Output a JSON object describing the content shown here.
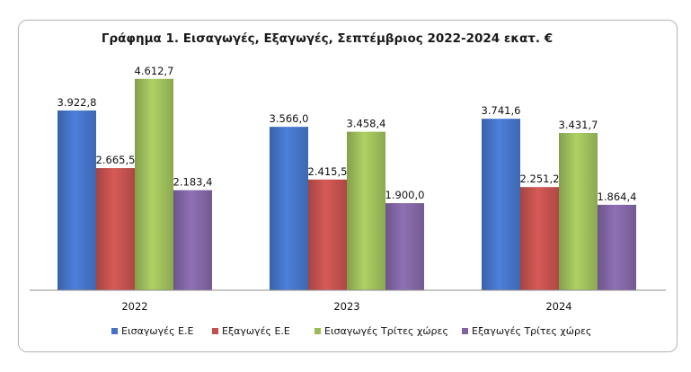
{
  "chart_data": {
    "type": "bar",
    "title": "Γράφημα 1. Εισαγωγές, Εξαγωγές, Σεπτέμβριος 2022-2024 εκατ. €",
    "categories": [
      "2022",
      "2023",
      "2024"
    ],
    "series": [
      {
        "name": "Εισαγωγές Ε.Ε",
        "values": [
          3922.8,
          3566.0,
          3741.6
        ],
        "labels": [
          "3.922,8",
          "3.566,0",
          "3.741,6"
        ],
        "color": "#4472C4"
      },
      {
        "name": "Εξαγωγές  Ε.Ε",
        "values": [
          2665.5,
          2415.5,
          2251.2
        ],
        "labels": [
          "2.665,5",
          "2.415,5",
          "2.251,2"
        ],
        "color": "#C0504D"
      },
      {
        "name": "Εισαγωγές Τρίτες χώρες",
        "values": [
          4612.7,
          3458.4,
          3431.7
        ],
        "labels": [
          "4.612,7",
          "3.458,4",
          "3.431,7"
        ],
        "color": "#9BBB59"
      },
      {
        "name": "Εξαγωγές Τρίτες χώρες",
        "values": [
          2183.4,
          1900.0,
          1864.4
        ],
        "labels": [
          "2.183,4",
          "1.900,0",
          "1.864,4"
        ],
        "color": "#8064A2"
      }
    ],
    "ylim": [
      0,
      5000
    ],
    "grid": false,
    "legend": "bottom",
    "xlabel": "",
    "ylabel": ""
  }
}
